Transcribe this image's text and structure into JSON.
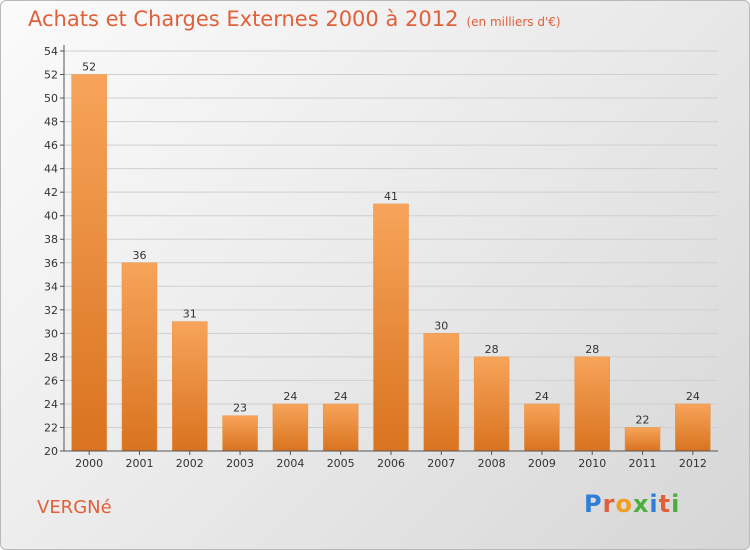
{
  "header": {
    "title": "Achats et Charges Externes 2000 à 2012",
    "subtitle": "(en milliers d'€)"
  },
  "footer": {
    "commune": "VERGNé",
    "logo_text": "Proxiti"
  },
  "colors": {
    "title": "#e0603a",
    "bar_top": "#f7a45a",
    "bar_bottom": "#d9731f",
    "grid": "#cfcfcf"
  },
  "chart_data": {
    "type": "bar",
    "title": "Achats et Charges Externes 2000 à 2012",
    "subtitle": "(en milliers d'€)",
    "categories": [
      "2000",
      "2001",
      "2002",
      "2003",
      "2004",
      "2005",
      "2006",
      "2007",
      "2008",
      "2009",
      "2010",
      "2011",
      "2012"
    ],
    "values": [
      52,
      36,
      31,
      23,
      24,
      24,
      41,
      30,
      28,
      24,
      28,
      22,
      24
    ],
    "ylim": [
      20,
      54
    ],
    "yticks": [
      20,
      22,
      24,
      26,
      28,
      30,
      32,
      34,
      36,
      38,
      40,
      42,
      44,
      46,
      48,
      50,
      52,
      54
    ],
    "grid": true,
    "data_labels": true
  }
}
